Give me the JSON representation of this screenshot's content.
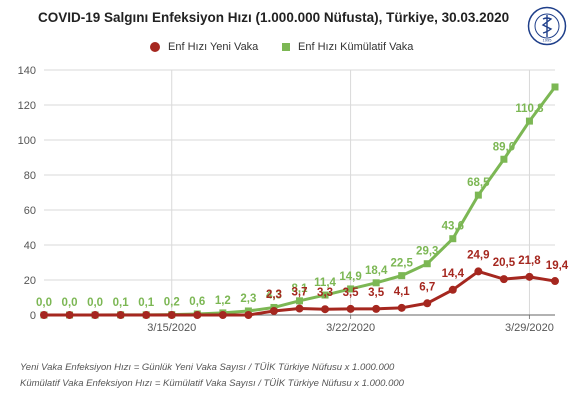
{
  "title": "COVID-19 Salgını Enfeksiyon Hızı (1.000.000 Nüfusta), Türkiye, 30.03.2020",
  "logo": {
    "text": "HALK SAĞLIĞI UZMANLARI DERNEĞİ",
    "year": "1995"
  },
  "legend": {
    "red": "Enf Hızı Yeni Vaka",
    "green": "Enf Hızı Kümülatif Vaka"
  },
  "footnotes": [
    "Yeni Vaka  Enfeksiyon Hızı = Günlük Yeni Vaka Sayısı / TÜİK Türkiye Nüfusu x 1.000.000",
    "Kümülatif Vaka  Enfeksiyon Hızı = Kümülatif  Vaka Sayısı / TÜİK Türkiye Nüfusu x 1.000.000"
  ],
  "colors": {
    "red": "#a5271f",
    "green": "#7cb754",
    "grid": "#d9d9d9"
  },
  "chart_data": {
    "type": "line",
    "x": [
      "3/10/2020",
      "3/11/2020",
      "3/12/2020",
      "3/13/2020",
      "3/14/2020",
      "3/15/2020",
      "3/16/2020",
      "3/17/2020",
      "3/18/2020",
      "3/19/2020",
      "3/20/2020",
      "3/21/2020",
      "3/22/2020",
      "3/23/2020",
      "3/24/2020",
      "3/25/2020",
      "3/26/2020",
      "3/27/2020",
      "3/28/2020",
      "3/29/2020",
      "3/30/2020"
    ],
    "xticks": [
      "3/15/2020",
      "3/22/2020",
      "3/29/2020"
    ],
    "ylim": [
      0,
      140
    ],
    "yticks": [
      0,
      20,
      40,
      60,
      80,
      100,
      120,
      140
    ],
    "grid": true,
    "legend_position": "top",
    "series": [
      {
        "name": "Enf Hızı Kümülatif Vaka",
        "marker": "square",
        "values": [
          0,
          0,
          0,
          0.1,
          0.1,
          0.2,
          0.6,
          1.2,
          2.3,
          4.3,
          8.1,
          11.4,
          14.9,
          18.4,
          22.5,
          29.3,
          43.6,
          68.5,
          89.0,
          110.8,
          130.3
        ],
        "labels": [
          "0,0",
          "0,0",
          "0,0",
          "0,1",
          "0,1",
          "0,2",
          "0,6",
          "1,2",
          "2,3",
          "4,3",
          "8,1",
          "11,4",
          "14,9",
          "18,4",
          "22,5",
          "29,3",
          "43,6",
          "68,5",
          "89,0",
          "110,8",
          ""
        ]
      },
      {
        "name": "Enf Hızı Yeni Vaka",
        "marker": "circle",
        "values": [
          0,
          0,
          0,
          0,
          0,
          0,
          0,
          0,
          0,
          2.3,
          3.7,
          3.3,
          3.5,
          3.5,
          4.1,
          6.7,
          14.4,
          24.9,
          20.5,
          21.8,
          19.4
        ],
        "labels": [
          "",
          "",
          "",
          "",
          "",
          "",
          "",
          "",
          "",
          "2,3",
          "3,7",
          "3,3",
          "3,5",
          "3,5",
          "4,1",
          "6,7",
          "14,4",
          "24,9",
          "20,5",
          "21,8",
          "19,4"
        ]
      }
    ]
  }
}
